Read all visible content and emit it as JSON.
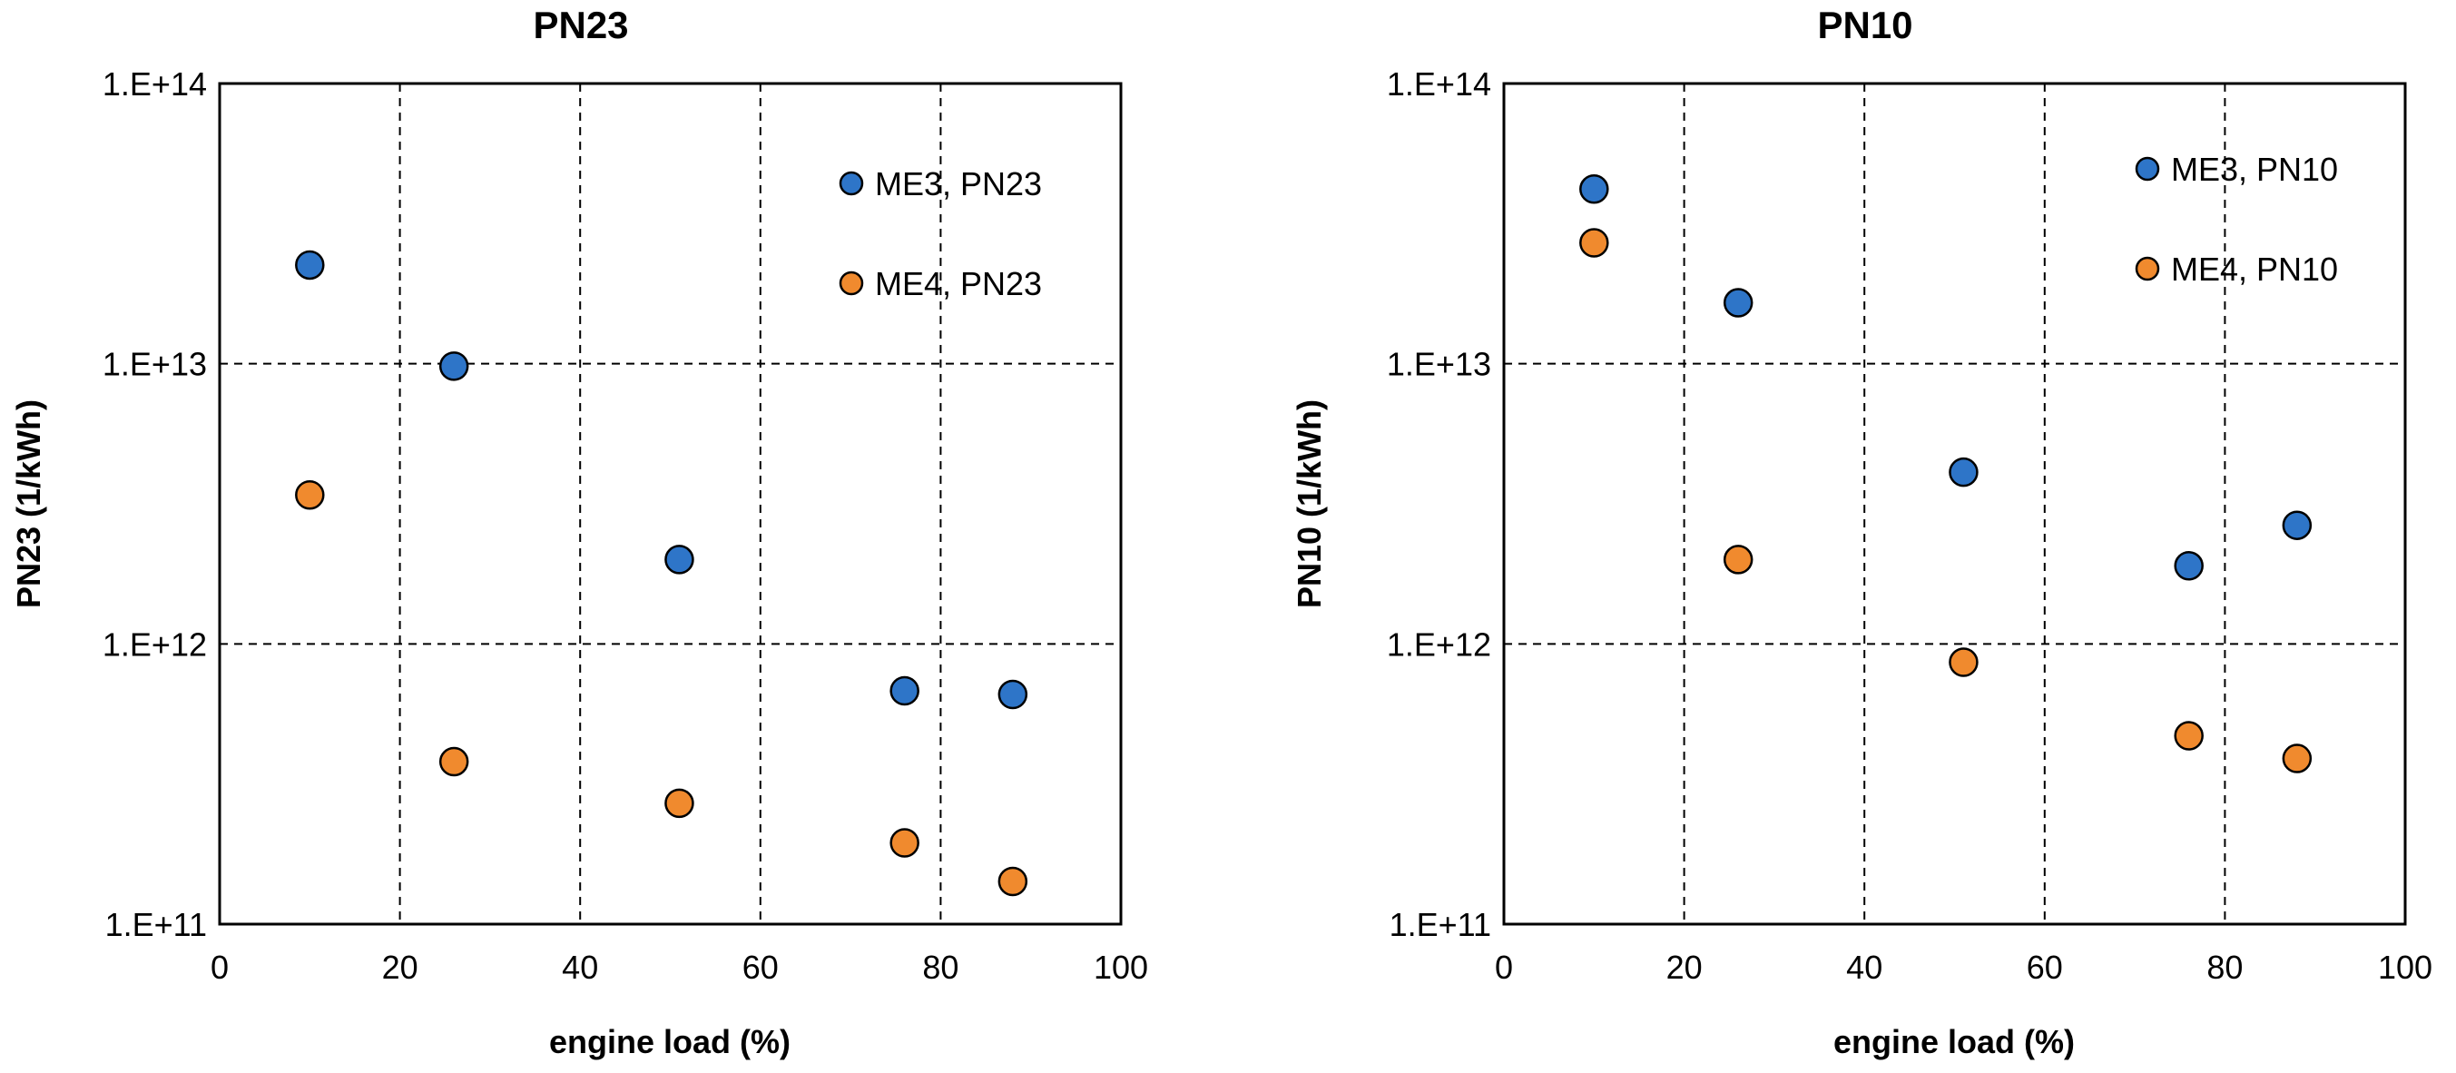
{
  "chart_data": [
    {
      "type": "scatter",
      "title": "PN23",
      "xlabel": "engine load (%)",
      "ylabel": "PN23 (1/kWh)",
      "xlim": [
        0,
        100
      ],
      "xticks": [
        0,
        20,
        40,
        60,
        80,
        100
      ],
      "xtick_labels": [
        "0",
        "20",
        "40",
        "60",
        "80",
        "100"
      ],
      "ylim": [
        100000000000,
        100000000000000
      ],
      "yscale": "log",
      "yticks": [
        100000000000,
        1000000000000,
        10000000000000,
        100000000000000
      ],
      "ytick_labels": [
        "1.E+11",
        "1.E+12",
        "1.E+13",
        "1.E+14"
      ],
      "grid": true,
      "legend_position": "top-right",
      "series": [
        {
          "name": "ME3, PN23",
          "color": "#2E75C8",
          "x": [
            10,
            26,
            51,
            76,
            88
          ],
          "y": [
            22500000000000,
            9800000000000,
            2000000000000,
            680000000000,
            660000000000
          ]
        },
        {
          "name": "ME4, PN23",
          "color": "#F08A2E",
          "x": [
            10,
            26,
            51,
            76,
            88
          ],
          "y": [
            3400000000000,
            380000000000,
            270000000000,
            195000000000,
            142000000000
          ]
        }
      ]
    },
    {
      "type": "scatter",
      "title": "PN10",
      "xlabel": "engine load (%)",
      "ylabel": "PN10 (1/kWh)",
      "xlim": [
        0,
        100
      ],
      "xticks": [
        0,
        20,
        40,
        60,
        80,
        100
      ],
      "xtick_labels": [
        "0",
        "20",
        "40",
        "60",
        "80",
        "100"
      ],
      "ylim": [
        100000000000,
        100000000000000
      ],
      "yscale": "log",
      "yticks": [
        100000000000,
        1000000000000,
        10000000000000,
        100000000000000
      ],
      "ytick_labels": [
        "1.E+11",
        "1.E+12",
        "1.E+13",
        "1.E+14"
      ],
      "grid": true,
      "legend_position": "top-right",
      "series": [
        {
          "name": "ME3, PN10",
          "color": "#2E75C8",
          "x": [
            10,
            26,
            51,
            76,
            88
          ],
          "y": [
            42000000000000,
            16500000000000,
            4100000000000,
            1900000000000,
            2650000000000
          ]
        },
        {
          "name": "ME4, PN10",
          "color": "#F08A2E",
          "x": [
            10,
            26,
            51,
            76,
            88
          ],
          "y": [
            27000000000000,
            2000000000000,
            860000000000,
            470000000000,
            390000000000
          ]
        }
      ]
    }
  ]
}
